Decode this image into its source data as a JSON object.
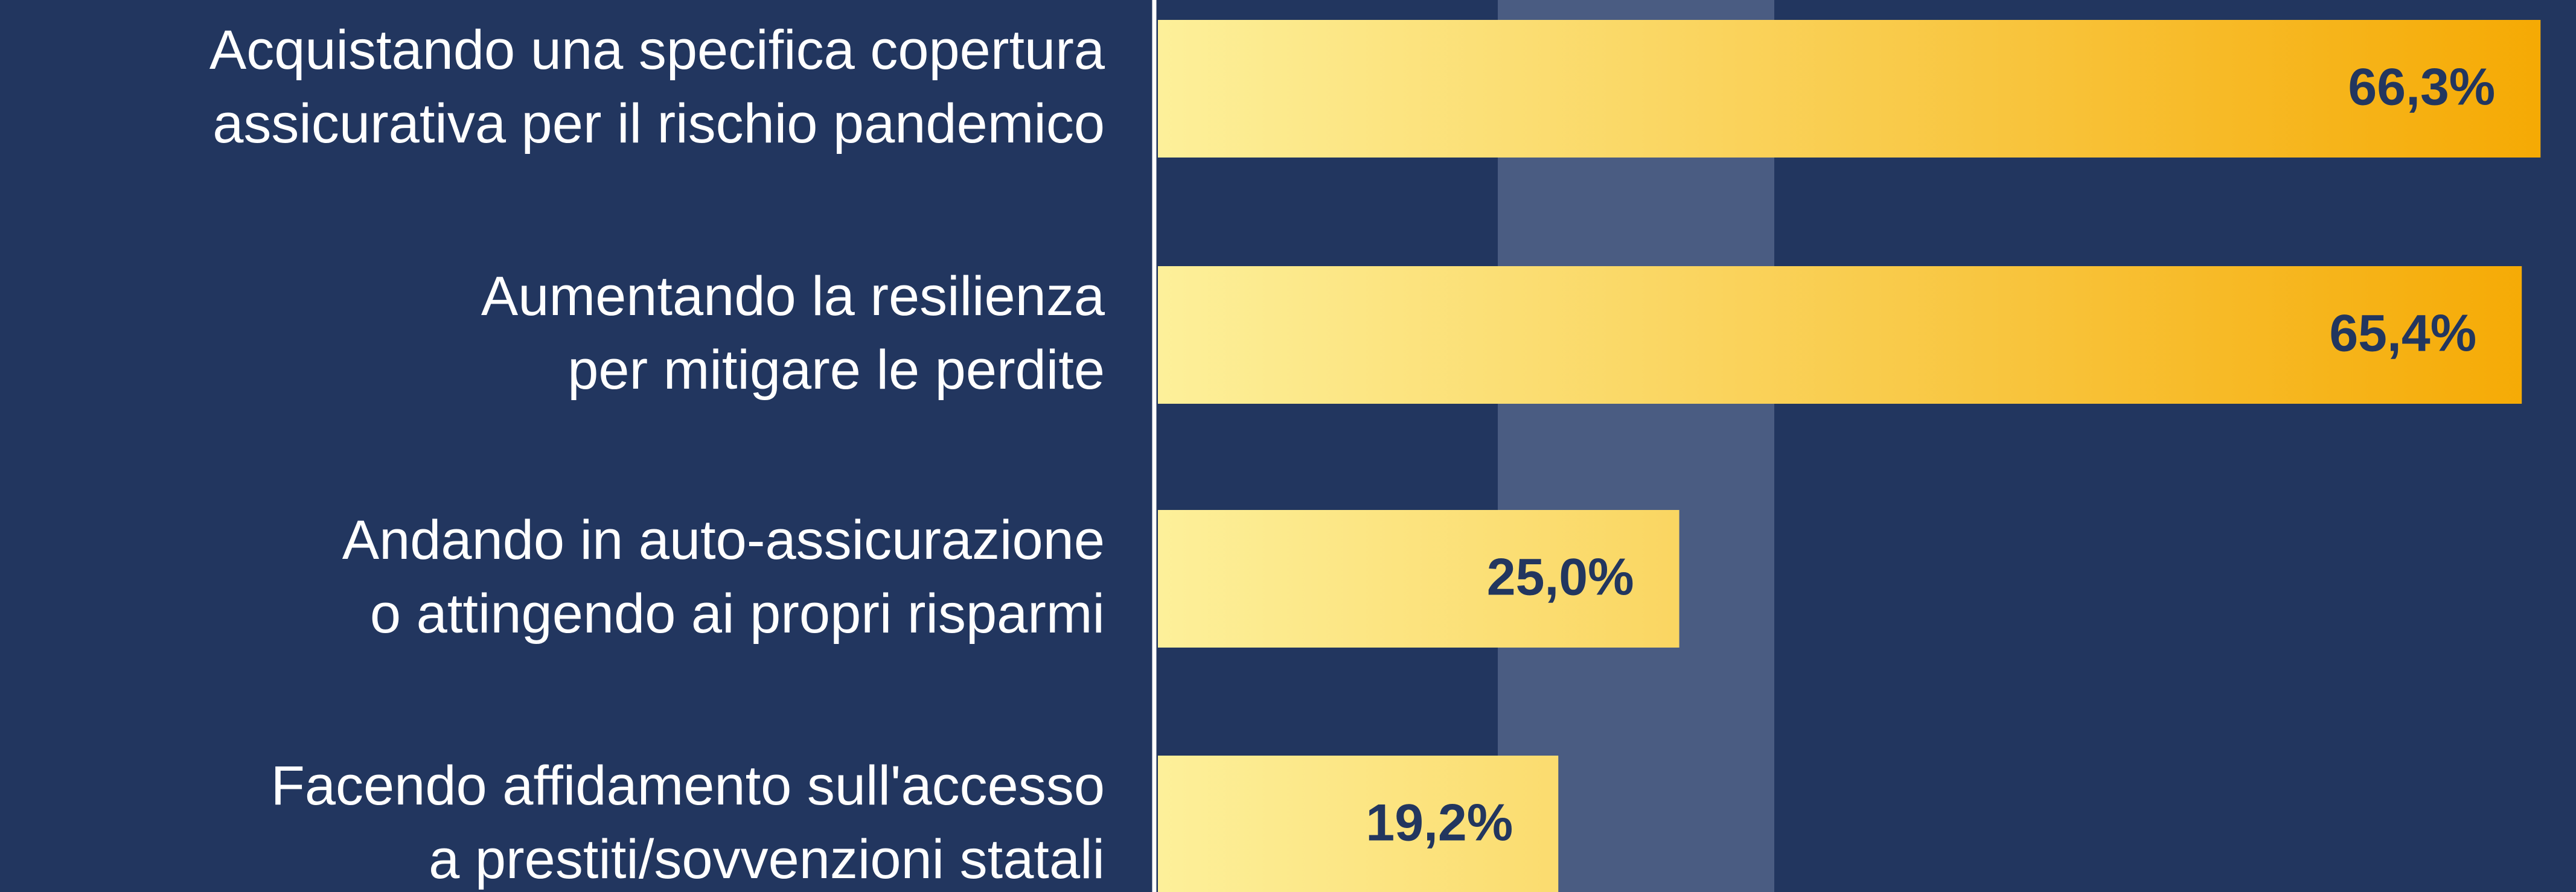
{
  "chart_data": {
    "type": "bar",
    "orientation": "horizontal",
    "categories": [
      [
        "Acquistando una specifica copertura",
        "assicurativa per il rischio pandemico"
      ],
      [
        "Aumentando la resilienza",
        "per mitigare le perdite"
      ],
      [
        "Andando in auto-assicurazione",
        "o attingendo ai propri risparmi"
      ],
      [
        "Facendo affidamento sull'accesso",
        "a prestiti/sovvenzioni statali"
      ]
    ],
    "values": [
      66.3,
      65.4,
      25.0,
      19.2
    ],
    "value_labels": [
      "66,3%",
      "65,4%",
      "25,0%",
      "19,2%"
    ],
    "color": [
      "#fdf09a",
      "#f5a800"
    ],
    "xlim": [
      0,
      68
    ]
  }
}
